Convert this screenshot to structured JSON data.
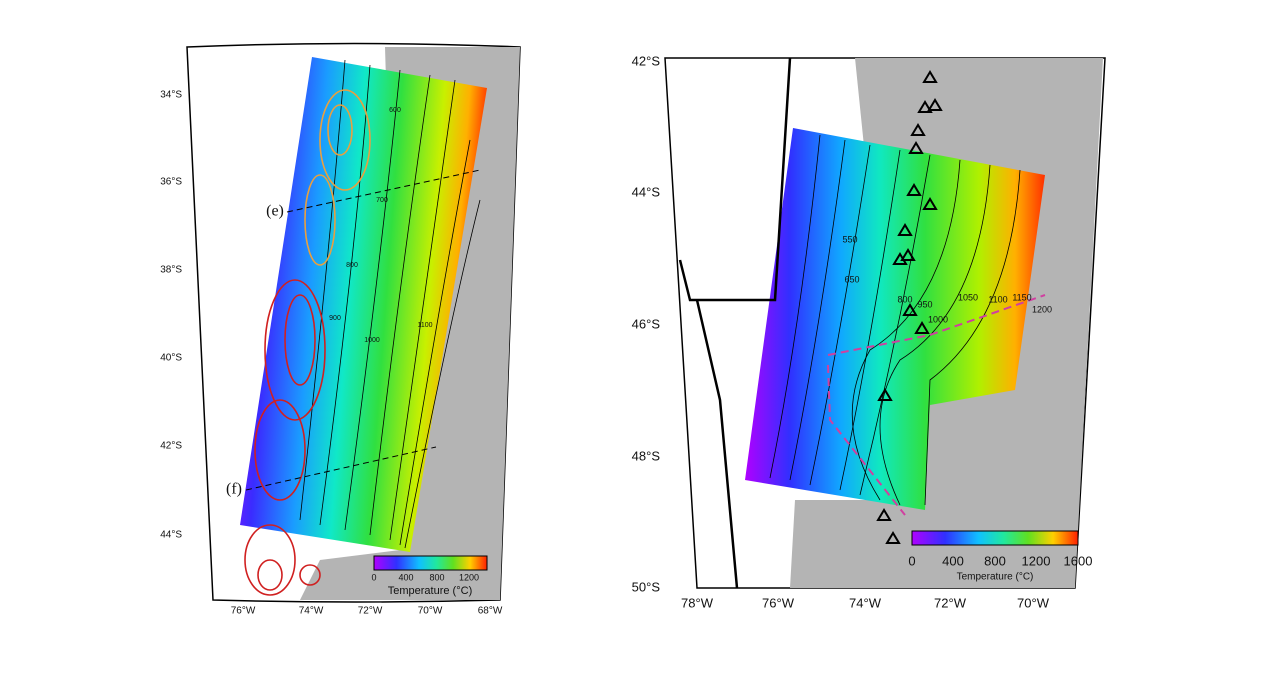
{
  "left_panel": {
    "latitude_labels": [
      "34°S",
      "36°S",
      "38°S",
      "40°S",
      "42°S",
      "44°S"
    ],
    "longitude_labels": [
      "76°W",
      "74°W",
      "72°W",
      "70°W",
      "68°W"
    ],
    "profile_labels": [
      "(e)",
      "(f)"
    ],
    "contour_labels": [
      "600",
      "700",
      "800",
      "900",
      "1000",
      "1100"
    ],
    "colorbar": {
      "ticks": [
        0,
        400,
        800,
        1200
      ],
      "title": "Temperature (°C)"
    }
  },
  "right_panel": {
    "latitude_labels": [
      "42°S",
      "44°S",
      "46°S",
      "48°S",
      "50°S"
    ],
    "longitude_labels": [
      "78°W",
      "76°W",
      "74°W",
      "72°W",
      "70°W"
    ],
    "contour_labels": [
      "1050",
      "1100",
      "1150",
      "1200",
      "1000",
      "950",
      "550",
      "650",
      "800"
    ],
    "colorbar": {
      "ticks": [
        0,
        400,
        800,
        1200,
        1600
      ],
      "title": "Temperature (°C)"
    }
  }
}
